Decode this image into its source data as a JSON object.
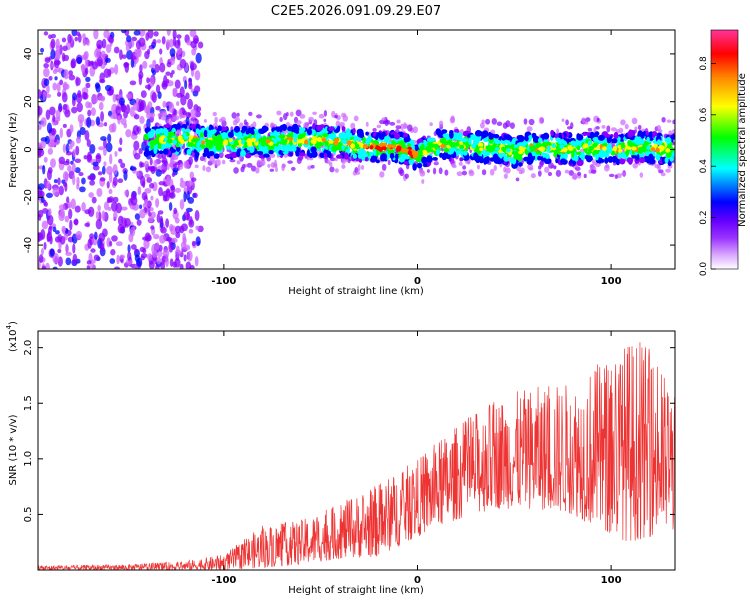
{
  "figure_title": "C2E5.2026.091.09.29.E07",
  "chart_data": [
    {
      "type": "heatmap",
      "name": "spectrogram",
      "title": "C2E5.2026.091.09.29.E07",
      "xlabel": "Height of straight line (km)",
      "ylabel": "Frequency (Hz)",
      "xlim": [
        -196,
        133
      ],
      "ylim": [
        -50,
        50
      ],
      "x_ticks": [
        -100,
        0,
        100
      ],
      "x_tick_labels": [
        "-100",
        "0",
        "100"
      ],
      "y_ticks": [
        -40,
        -20,
        0,
        20,
        40
      ],
      "y_tick_labels": [
        "-40",
        "-20",
        "0",
        "20",
        "40"
      ],
      "colorbar": {
        "label": "Normalized spectral amplitude",
        "range": [
          0.0,
          0.93
        ],
        "ticks": [
          0.0,
          0.2,
          0.4,
          0.6,
          0.8
        ],
        "tick_labels": [
          "0.0",
          "0.2",
          "0.4",
          "0.6",
          "0.8"
        ],
        "colors": [
          "#ffffff",
          "#cc66ff",
          "#8800ff",
          "#0000ff",
          "#00ffff",
          "#00ff00",
          "#ffff00",
          "#ff8800",
          "#ff0000",
          "#ff3399"
        ]
      },
      "noise_region_x": [
        -196,
        -112
      ],
      "signal_band_halfwidth_hz": 6,
      "ridge": {
        "x": [
          -140,
          -120,
          -100,
          -80,
          -60,
          -40,
          -25,
          -15,
          -5,
          0,
          10,
          20,
          30,
          40,
          50,
          60,
          70,
          80,
          90,
          100,
          110,
          120,
          133
        ],
        "y": [
          4,
          4,
          3,
          3,
          4,
          3,
          1,
          1,
          0,
          -3,
          2,
          2,
          1,
          1,
          -1,
          1,
          1,
          0,
          1,
          0,
          1,
          1,
          0
        ]
      }
    },
    {
      "type": "line",
      "name": "snr",
      "xlabel": "Height of straight line (km)",
      "ylabel": "SNR (10 * v/v)",
      "multiplier_label": "(x10",
      "multiplier_exponent": "4",
      "xlim": [
        -196,
        133
      ],
      "ylim": [
        0,
        2.15
      ],
      "x_ticks": [
        -100,
        0,
        100
      ],
      "x_tick_labels": [
        "-100",
        "0",
        "100"
      ],
      "y_ticks": [
        0.5,
        1.0,
        1.5,
        2.0
      ],
      "y_tick_labels": [
        "0.5",
        "1.0",
        "1.5",
        "2.0"
      ],
      "color": "#ee3333",
      "envelope": {
        "x": [
          -196,
          -150,
          -120,
          -100,
          -80,
          -60,
          -40,
          -20,
          0,
          20,
          40,
          60,
          80,
          100,
          110,
          120,
          133
        ],
        "upper": [
          0.04,
          0.05,
          0.08,
          0.14,
          0.4,
          0.45,
          0.6,
          0.78,
          1.0,
          1.3,
          1.55,
          1.65,
          1.7,
          1.95,
          2.1,
          2.0,
          1.6
        ],
        "lower": [
          0.0,
          0.0,
          0.0,
          0.0,
          0.02,
          0.05,
          0.1,
          0.12,
          0.3,
          0.45,
          0.55,
          0.55,
          0.5,
          0.3,
          0.25,
          0.3,
          0.35
        ]
      }
    }
  ]
}
